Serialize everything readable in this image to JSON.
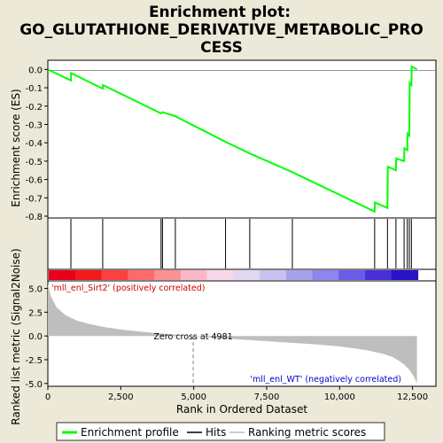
{
  "chart_data": {
    "type": "line",
    "title_lines": [
      "Enrichment plot:",
      "GO_GLUTATHIONE_DERIVATIVE_METABOLIC_PRO",
      "CESS"
    ],
    "xlabel": "Rank in Ordered Dataset",
    "ylabel_top": "Enrichment score (ES)",
    "ylabel_bottom": "Ranked list metric (Signal2Noise)",
    "x_range": [
      0,
      13300
    ],
    "es_ylim": [
      -0.8,
      0.05
    ],
    "metric_ylim": [
      -5.3,
      5.8
    ],
    "x_ticks": [
      0,
      2500,
      5000,
      7500,
      10000,
      12500
    ],
    "x_tick_labels": [
      "0",
      "2,500",
      "5,000",
      "7,500",
      "10,000",
      "12,500"
    ],
    "es_ticks": [
      0.0,
      -0.1,
      -0.2,
      -0.3,
      -0.4,
      -0.5,
      -0.6,
      -0.7,
      -0.8
    ],
    "es_tick_labels": [
      "0.0",
      "-0.1",
      "-0.2",
      "-0.3",
      "-0.4",
      "-0.5",
      "-0.6",
      "-0.7",
      "-0.8"
    ],
    "metric_ticks": [
      5.0,
      2.5,
      0.0,
      -2.5,
      -5.0
    ],
    "metric_tick_labels": [
      "5.0",
      "2.5",
      "0.0",
      "-2.5",
      "-5.0"
    ],
    "hits": [
      790,
      1880,
      3880,
      3930,
      4370,
      6090,
      6920,
      8380,
      11200,
      11640,
      11930,
      12210,
      12320,
      12390,
      12460
    ],
    "es_profile": {
      "x": [
        0,
        790,
        800,
        1880,
        1890,
        3880,
        3930,
        4370,
        6090,
        6920,
        8380,
        11200,
        11210,
        11640,
        11650,
        11930,
        11940,
        12210,
        12220,
        12320,
        12330,
        12390,
        12400,
        12460,
        12470,
        12650
      ],
      "y": [
        0.0,
        -0.06,
        -0.02,
        -0.105,
        -0.085,
        -0.24,
        -0.233,
        -0.255,
        -0.395,
        -0.458,
        -0.56,
        -0.775,
        -0.725,
        -0.755,
        -0.53,
        -0.55,
        -0.485,
        -0.5,
        -0.43,
        -0.44,
        -0.35,
        -0.36,
        -0.075,
        -0.085,
        0.015,
        0.0
      ]
    },
    "metric_profile": {
      "x": [
        0,
        100,
        300,
        600,
        1000,
        1500,
        2000,
        2500,
        3000,
        3500,
        4000,
        4500,
        4981,
        6000,
        7000,
        8000,
        9000,
        10000,
        10500,
        11000,
        11500,
        11800,
        12000,
        12200,
        12400,
        12550,
        12650
      ],
      "y": [
        5.5,
        4.2,
        3.0,
        2.2,
        1.6,
        1.2,
        0.9,
        0.68,
        0.5,
        0.35,
        0.22,
        0.1,
        0.0,
        -0.25,
        -0.45,
        -0.65,
        -0.85,
        -1.1,
        -1.3,
        -1.55,
        -1.9,
        -2.2,
        -2.55,
        -3.0,
        -3.6,
        -4.3,
        -5.0
      ]
    },
    "colorbar_colors": [
      "#e8001a",
      "#f21a1a",
      "#fb4040",
      "#fc6a6a",
      "#fd9090",
      "#fcb8c8",
      "#fad7e8",
      "#e1d8f2",
      "#c8c2ee",
      "#a8a2ec",
      "#8c86f0",
      "#6b5ce6",
      "#4a2ed6",
      "#2812c6"
    ],
    "annotations": {
      "positive_label": "'mll_enl_Sirt2' (positively correlated)",
      "negative_label": "'mll_enl_WT' (negatively correlated)",
      "zero_cross_label": "Zero cross at 4981",
      "zero_cross": 4981
    },
    "legend": {
      "placement": "bottom",
      "items": [
        {
          "label": "Enrichment profile",
          "color": "#00ff00"
        },
        {
          "label": "Hits",
          "color": "#000000"
        },
        {
          "label": "Ranking metric scores",
          "color": "#bebebe"
        }
      ]
    }
  }
}
